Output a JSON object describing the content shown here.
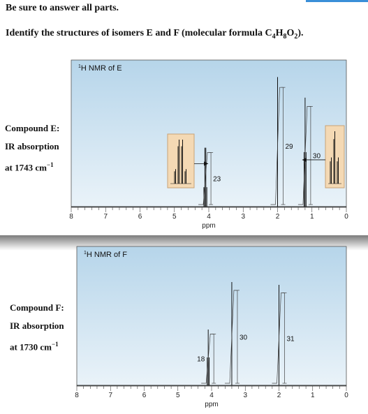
{
  "instructions": "Be sure to answer all parts.",
  "question": {
    "prefix": "Identify the structures of isomers E and F (molecular formula C",
    "c_sub": "4",
    "h": "H",
    "h_sub": "8",
    "o": "O",
    "o_sub": "2",
    "suffix": ")."
  },
  "compound_e": {
    "name": "Compound E:",
    "ir_label": "IR absorption",
    "ir_value": "at 1743 cm",
    "ir_exp": "−1"
  },
  "compound_f": {
    "name": "Compound F:",
    "ir_label": "IR absorption",
    "ir_value": "at 1730 cm",
    "ir_exp": "−1"
  },
  "colors": {
    "plot_top": "#b6d5ea",
    "plot_bottom": "#eaf3f9",
    "inset_fill": "#f4d9b4",
    "inset_stroke": "#c9a276",
    "accent_bar": "#3a8fd8"
  },
  "chart_data": [
    {
      "type": "line",
      "title": "H NMR of E",
      "title_sup": "1",
      "xlabel": "ppm",
      "xlim": [
        8,
        0
      ],
      "x_reversed": true,
      "x_ticks": [
        "8",
        "7",
        "6",
        "5",
        "4",
        "3",
        "2",
        "1",
        "0"
      ],
      "peaks": [
        {
          "shift": 4.1,
          "multiplicity": "quartet",
          "integration": "23"
        },
        {
          "shift": 2.0,
          "multiplicity": "singlet",
          "integration": "29"
        },
        {
          "shift": 1.2,
          "multiplicity": "triplet",
          "integration": "30"
        }
      ],
      "insets": [
        {
          "peak": 4.1,
          "multiplicity": "quartet"
        },
        {
          "peak": 1.2,
          "multiplicity": "triplet"
        }
      ]
    },
    {
      "type": "line",
      "title": "H NMR of F",
      "title_sup": "1",
      "xlabel": "ppm",
      "xlim": [
        8,
        0
      ],
      "x_reversed": true,
      "x_ticks": [
        "8",
        "7",
        "6",
        "5",
        "4",
        "3",
        "2",
        "1",
        "0"
      ],
      "peaks": [
        {
          "shift": 4.1,
          "multiplicity": "triplet",
          "integration": "18"
        },
        {
          "shift": 3.4,
          "multiplicity": "singlet",
          "integration": "30"
        },
        {
          "shift": 2.0,
          "multiplicity": "singlet",
          "integration": "31"
        }
      ]
    }
  ]
}
